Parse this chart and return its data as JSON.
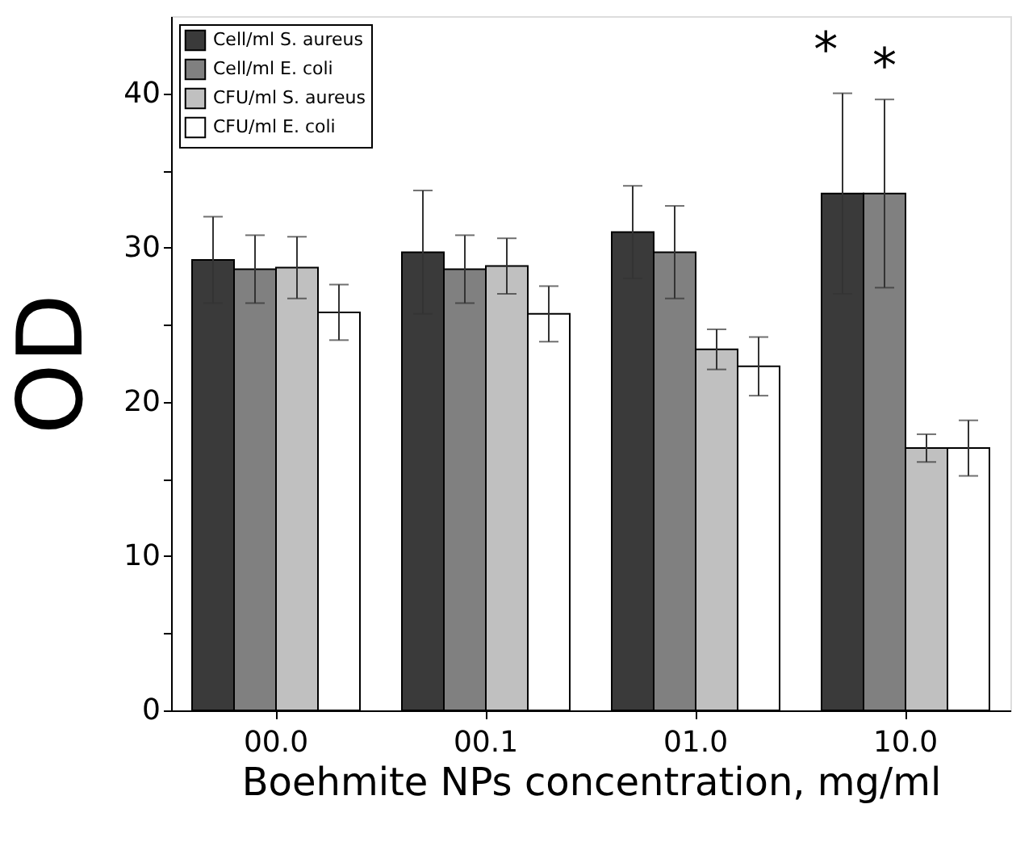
{
  "chart_data": {
    "type": "bar",
    "xlabel": "Boehmite NPs concentration, mg/ml",
    "ylabel": "OD",
    "categories": [
      "00.0",
      "00.1",
      "01.0",
      "10.0"
    ],
    "series": [
      {
        "name": "Cell/ml S. aureus",
        "color": "#3a3a3a",
        "values": [
          29.2,
          29.7,
          31.0,
          33.5
        ],
        "errors": [
          2.8,
          4.0,
          3.0,
          6.5
        ]
      },
      {
        "name": "Cell/ml E. coli",
        "color": "#808080",
        "values": [
          28.6,
          28.6,
          29.7,
          33.5
        ],
        "errors": [
          2.2,
          2.2,
          3.0,
          6.1
        ]
      },
      {
        "name": "CFU/ml S. aureus",
        "color": "#c0c0c0",
        "values": [
          28.7,
          28.8,
          23.4,
          17.0
        ],
        "errors": [
          2.0,
          1.8,
          1.3,
          0.9
        ]
      },
      {
        "name": "CFU/ml E. coli",
        "color": "#ffffff",
        "values": [
          25.8,
          25.7,
          22.3,
          17.0
        ],
        "errors": [
          1.8,
          1.8,
          1.9,
          1.8
        ]
      }
    ],
    "ylim": [
      0,
      45
    ],
    "yticks": [
      0,
      {
        "value": 5,
        "label": null
      },
      10,
      {
        "value": 15,
        "label": null
      },
      20,
      {
        "value": 25,
        "label": null
      },
      30,
      {
        "value": 35,
        "label": null
      },
      40
    ],
    "legend": "top left",
    "grid": false,
    "annotations": [
      "*",
      "*"
    ]
  }
}
